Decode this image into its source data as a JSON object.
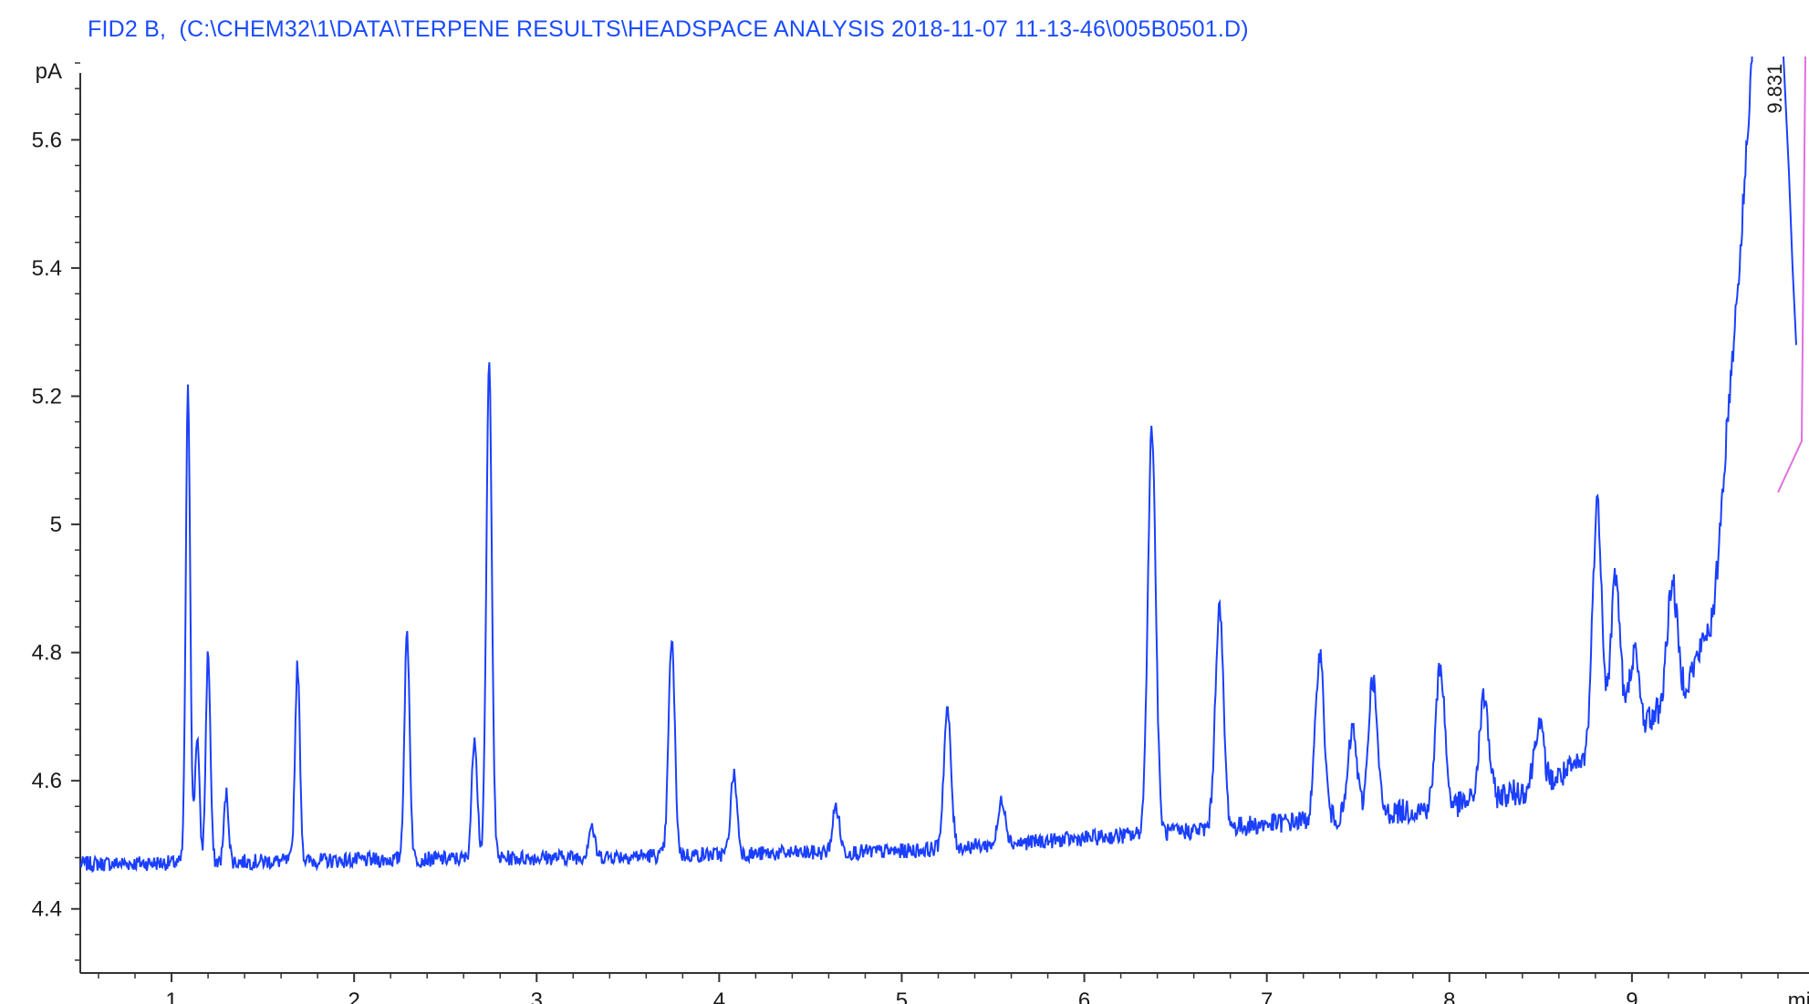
{
  "chart_data": {
    "type": "line",
    "title": "FID2 B,  (C:\\CHEM32\\1\\DATA\\TERPENE RESULTS\\HEADSPACE ANALYSIS 2018-11-07 11-13-46\\005B0501.D)",
    "xlabel": "min",
    "ylabel": "pA",
    "xlim": [
      0.5,
      9.97
    ],
    "ylim": [
      4.3,
      5.73
    ],
    "x_ticks": [
      1,
      2,
      3,
      4,
      5,
      6,
      7,
      8,
      9
    ],
    "y_ticks": [
      4.4,
      4.6,
      4.8,
      5,
      5.2,
      5.4,
      5.6
    ],
    "y_tick_labels": [
      "4.4",
      "4.6",
      "4.8",
      "5",
      "5.2",
      "5.4",
      "5.6"
    ],
    "grid": false,
    "series": [
      {
        "color": "#1a3fff",
        "baseline": [
          [
            0.5,
            4.47
          ],
          [
            3,
            4.48
          ],
          [
            5,
            4.49
          ],
          [
            6.5,
            4.52
          ],
          [
            7.5,
            4.545
          ],
          [
            8,
            4.56
          ],
          [
            8.5,
            4.59
          ],
          [
            9,
            4.67
          ],
          [
            9.3,
            4.75
          ],
          [
            9.45,
            4.86
          ],
          [
            9.52,
            5.15
          ],
          [
            9.6,
            5.45
          ],
          [
            9.66,
            5.75
          ]
        ],
        "peaks": [
          {
            "x": 1.09,
            "y": 5.21
          },
          {
            "x": 1.14,
            "y": 4.67
          },
          {
            "x": 1.2,
            "y": 4.8
          },
          {
            "x": 1.3,
            "y": 4.58
          },
          {
            "x": 1.69,
            "y": 4.78
          },
          {
            "x": 2.29,
            "y": 4.83
          },
          {
            "x": 2.66,
            "y": 4.67
          },
          {
            "x": 2.74,
            "y": 5.25
          },
          {
            "x": 3.3,
            "y": 4.53
          },
          {
            "x": 3.74,
            "y": 4.82
          },
          {
            "x": 4.08,
            "y": 4.61
          },
          {
            "x": 4.64,
            "y": 4.56
          },
          {
            "x": 5.25,
            "y": 4.71
          },
          {
            "x": 5.55,
            "y": 4.57
          },
          {
            "x": 6.37,
            "y": 5.15
          },
          {
            "x": 6.74,
            "y": 4.87
          },
          {
            "x": 7.29,
            "y": 4.8
          },
          {
            "x": 7.47,
            "y": 4.68
          },
          {
            "x": 7.58,
            "y": 4.76
          },
          {
            "x": 7.95,
            "y": 4.78
          },
          {
            "x": 8.19,
            "y": 4.73
          },
          {
            "x": 8.49,
            "y": 4.69
          },
          {
            "x": 8.81,
            "y": 5.03
          },
          {
            "x": 8.91,
            "y": 4.92
          },
          {
            "x": 9.01,
            "y": 4.8
          },
          {
            "x": 9.22,
            "y": 4.91
          }
        ]
      },
      {
        "color": "#1a3fff",
        "name": "",
        "x": [
          9.83,
          9.86,
          9.88,
          9.9
        ],
        "y": [
          5.73,
          5.55,
          5.4,
          5.28
        ]
      }
    ],
    "baseline_marker": {
      "color": "#e070e0",
      "x": [
        9.8,
        9.93,
        9.95
      ],
      "y": [
        5.05,
        5.13,
        5.73
      ]
    },
    "annotations": [
      {
        "text": "9.831",
        "x": 9.84,
        "y": 5.68
      }
    ]
  }
}
